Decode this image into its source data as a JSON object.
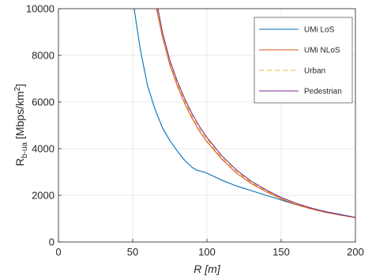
{
  "chart_data": {
    "type": "line",
    "xlabel": "R [m]",
    "ylabel_main": "R",
    "ylabel_sub": "b-ua",
    "ylabel_unit_pre": " [Mbps/km",
    "ylabel_unit_sup": "2",
    "ylabel_unit_post": "]",
    "xlim": [
      0,
      200
    ],
    "ylim": [
      0,
      10000
    ],
    "xticks": [
      0,
      50,
      100,
      150,
      200
    ],
    "yticks": [
      0,
      2000,
      4000,
      6000,
      8000,
      10000
    ],
    "grid": true,
    "legend_position": "top-right",
    "series": [
      {
        "name": "UMi LoS",
        "color": "#0072BD",
        "dash": "",
        "x": [
          51,
          55,
          60,
          65,
          70,
          75,
          80,
          85,
          90,
          93,
          95,
          98,
          100,
          105,
          110,
          120,
          130,
          140,
          150,
          160,
          170,
          180,
          190,
          200
        ],
        "y": [
          10000,
          8300,
          6700,
          5700,
          4900,
          4350,
          3900,
          3500,
          3200,
          3080,
          3050,
          3000,
          2950,
          2800,
          2650,
          2400,
          2200,
          2000,
          1800,
          1600,
          1450,
          1300,
          1180,
          1050
        ]
      },
      {
        "name": "UMi NLoS",
        "color": "#D95319",
        "dash": "",
        "x": [
          66,
          70,
          75,
          80,
          85,
          90,
          95,
          100,
          110,
          120,
          130,
          140,
          150,
          160,
          170,
          180,
          190,
          200
        ],
        "y": [
          10000,
          8800,
          7600,
          6700,
          5950,
          5300,
          4750,
          4300,
          3550,
          2950,
          2500,
          2150,
          1850,
          1600,
          1420,
          1270,
          1150,
          1040
        ]
      },
      {
        "name": "Urban",
        "color": "#EDB120",
        "dash": "6 4",
        "x": [
          66.5,
          70,
          75,
          80,
          85,
          90,
          95,
          100,
          110,
          120,
          130,
          140,
          150,
          160,
          170,
          180,
          190,
          200
        ],
        "y": [
          10000,
          8900,
          7700,
          6800,
          6050,
          5400,
          4850,
          4400,
          3620,
          3020,
          2550,
          2190,
          1880,
          1630,
          1440,
          1290,
          1160,
          1050
        ]
      },
      {
        "name": "Pedestrian",
        "color": "#7E2F8E",
        "dash": "",
        "x": [
          67,
          70,
          75,
          80,
          85,
          90,
          95,
          100,
          110,
          120,
          130,
          140,
          150,
          160,
          170,
          180,
          190,
          200
        ],
        "y": [
          10000,
          9000,
          7800,
          6900,
          6150,
          5500,
          4950,
          4480,
          3700,
          3080,
          2600,
          2230,
          1910,
          1660,
          1460,
          1300,
          1170,
          1060
        ]
      }
    ]
  }
}
